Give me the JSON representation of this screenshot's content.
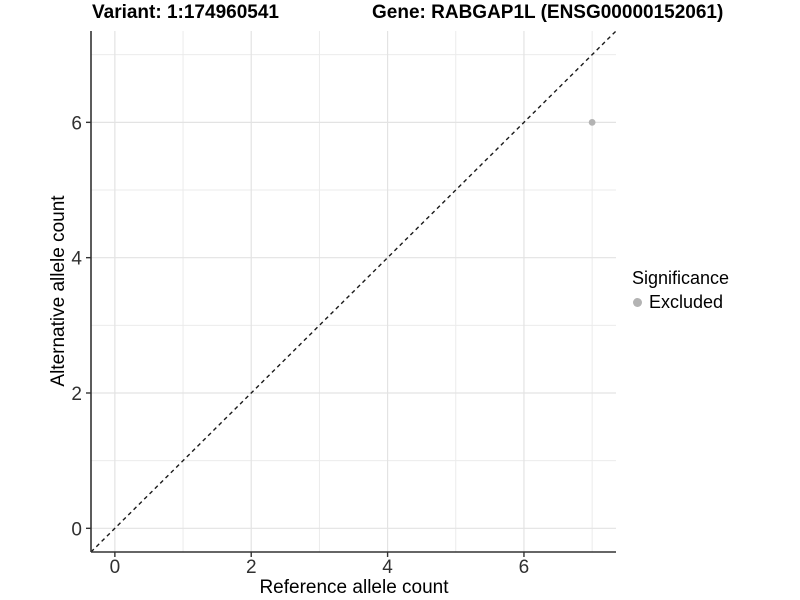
{
  "header": {
    "variant_title": "Variant: 1:174960541",
    "gene_title": "Gene: RABGAP1L (ENSG00000152061)"
  },
  "chart_data": {
    "type": "scatter",
    "xlabel": "Reference allele count",
    "ylabel": "Alternative allele count",
    "xlim": [
      -0.35,
      7.35
    ],
    "ylim": [
      -0.35,
      7.35
    ],
    "x_major_ticks": [
      0,
      2,
      4,
      6
    ],
    "y_major_ticks": [
      0,
      2,
      4,
      6
    ],
    "x_minor_gridlines": [
      1,
      3,
      5,
      7
    ],
    "y_minor_gridlines": [
      1,
      3,
      5,
      7
    ],
    "grid": "on",
    "points": [
      {
        "x": 7,
        "y": 6,
        "series": "Excluded"
      }
    ],
    "reference_line": {
      "type": "identity",
      "slope": 1,
      "intercept": 0,
      "style": "dashed"
    },
    "legend": {
      "title": "Significance",
      "position": "right",
      "entries": [
        {
          "label": "Excluded",
          "color": "#b3b3b3"
        }
      ]
    }
  },
  "colors": {
    "point_excluded": "#b3b3b3",
    "grid_major": "#e3e3e3",
    "grid_minor": "#ebebeb",
    "axis_line": "#333333",
    "tick_label": "#303030",
    "reference_line": "#1a1a1a",
    "background": "#ffffff"
  }
}
